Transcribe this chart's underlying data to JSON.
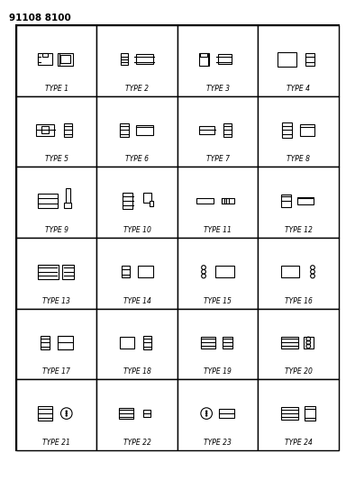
{
  "title": "91108 8100",
  "background": "#ffffff",
  "grid_rows": 6,
  "grid_cols": 4,
  "types": [
    "TYPE 1",
    "TYPE 2",
    "TYPE 3",
    "TYPE 4",
    "TYPE 5",
    "TYPE 6",
    "TYPE 7",
    "TYPE 8",
    "TYPE 9",
    "TYPE 10",
    "TYPE 11",
    "TYPE 12",
    "TYPE 13",
    "TYPE 14",
    "TYPE 15",
    "TYPE 16",
    "TYPE 17",
    "TYPE 18",
    "TYPE 19",
    "TYPE 20",
    "TYPE 21",
    "TYPE 22",
    "TYPE 23",
    "TYPE 24"
  ],
  "outer_border": {
    "linewidth": 1.5,
    "color": "#000000"
  },
  "cell_border": {
    "linewidth": 1.0,
    "color": "#000000"
  },
  "label_fontsize": 5.5,
  "label_fontfamily": "sans-serif"
}
